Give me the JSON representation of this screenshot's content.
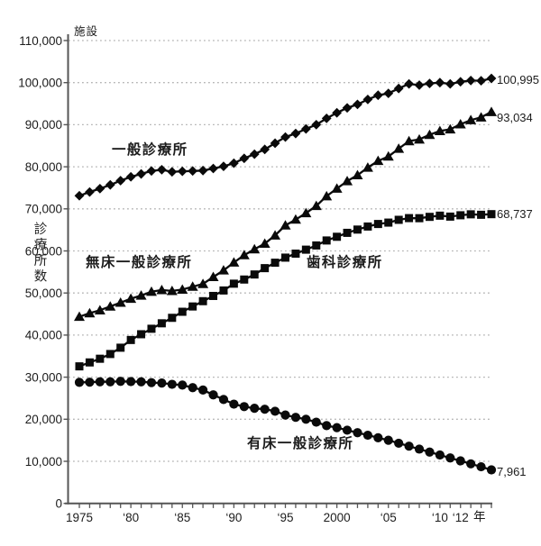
{
  "chart_data": {
    "type": "line",
    "unit_label_y": "施設",
    "axis_title_y": "診療所数",
    "unit_label_x": "年",
    "grid": "dotted-horizontal",
    "legend_position": "inline-labels",
    "ylim": [
      0,
      110000
    ],
    "y_ticks": [
      0,
      10000,
      20000,
      30000,
      40000,
      50000,
      60000,
      70000,
      80000,
      90000,
      100000,
      110000
    ],
    "y_tick_format": "comma",
    "x": [
      1975,
      1976,
      1977,
      1978,
      1979,
      1980,
      1981,
      1982,
      1983,
      1984,
      1985,
      1986,
      1987,
      1988,
      1989,
      1990,
      1991,
      1992,
      1993,
      1994,
      1995,
      1996,
      1997,
      1998,
      1999,
      2000,
      2001,
      2002,
      2003,
      2004,
      2005,
      2006,
      2007,
      2008,
      2009,
      2010,
      2011,
      2012,
      2013,
      2014,
      2015
    ],
    "x_tick_labels": [
      {
        "label": "1975",
        "year": 1975
      },
      {
        "label": "‘80",
        "year": 1980
      },
      {
        "label": "‘85",
        "year": 1985
      },
      {
        "label": "‘90",
        "year": 1990
      },
      {
        "label": "‘95",
        "year": 1995
      },
      {
        "label": "2000",
        "year": 2000
      },
      {
        "label": "‘05",
        "year": 2005
      },
      {
        "label": "‘10",
        "year": 2010
      },
      {
        "label": "‘12",
        "year": 2012
      }
    ],
    "series": [
      {
        "name": "一般診療所",
        "marker": "diamond",
        "end_label": "100,995",
        "end_value": 100995,
        "values": [
          73114,
          74000,
          74800,
          75700,
          76700,
          77611,
          78300,
          79000,
          79300,
          78800,
          78927,
          79000,
          79101,
          79600,
          80100,
          80852,
          82000,
          83000,
          84128,
          85600,
          87069,
          87909,
          89000,
          90000,
          91500,
          92824,
          94000,
          94819,
          96000,
          97000,
          97442,
          98609,
          99700,
          99400,
          99800,
          100000,
          99700,
          100200,
          100500,
          100450,
          100995
        ]
      },
      {
        "name": "無床一般診療所",
        "marker": "triangle",
        "end_label": "93,034",
        "end_value": 93034,
        "values": [
          44351,
          45200,
          45900,
          46800,
          47700,
          48654,
          49400,
          50300,
          50700,
          50500,
          50804,
          51500,
          52155,
          53800,
          55400,
          57263,
          59000,
          60400,
          61745,
          63700,
          66069,
          67457,
          69000,
          70700,
          73013,
          74824,
          76600,
          78019,
          79800,
          81400,
          82442,
          84309,
          86100,
          86500,
          87600,
          88500,
          88900,
          90100,
          91100,
          91750,
          93034
        ]
      },
      {
        "name": "歯科診療所",
        "marker": "square",
        "end_label": "68,737",
        "end_value": 68737,
        "values": [
          32565,
          33500,
          34376,
          35500,
          37000,
          38834,
          40200,
          41500,
          42800,
          44100,
          45540,
          46800,
          48058,
          49300,
          50600,
          52216,
          53200,
          54400,
          55906,
          57200,
          58407,
          59357,
          60300,
          61300,
          62484,
          63361,
          64300,
          65073,
          65800,
          66400,
          66732,
          67392,
          67798,
          67779,
          68097,
          68384,
          68156,
          68474,
          68701,
          68592,
          68737
        ]
      },
      {
        "name": "有床一般診療所",
        "marker": "circle",
        "end_label": "7,961",
        "end_value": 7961,
        "values": [
          28763,
          28800,
          28900,
          28900,
          29000,
          28957,
          28900,
          28700,
          28600,
          28300,
          28123,
          27500,
          26946,
          25800,
          24700,
          23589,
          23000,
          22600,
          22383,
          21900,
          21000,
          20452,
          20000,
          19300,
          18487,
          18000,
          17400,
          16800,
          16200,
          15600,
          15000,
          14300,
          13600,
          12900,
          12200,
          11500,
          10800,
          10100,
          9400,
          8700,
          7961
        ]
      }
    ],
    "colors": {
      "line": "#0a0a0a",
      "marker": "#0a0a0a",
      "grid": "#b5b5b5",
      "axis": "#555555",
      "text": "#1c1c1c"
    }
  }
}
